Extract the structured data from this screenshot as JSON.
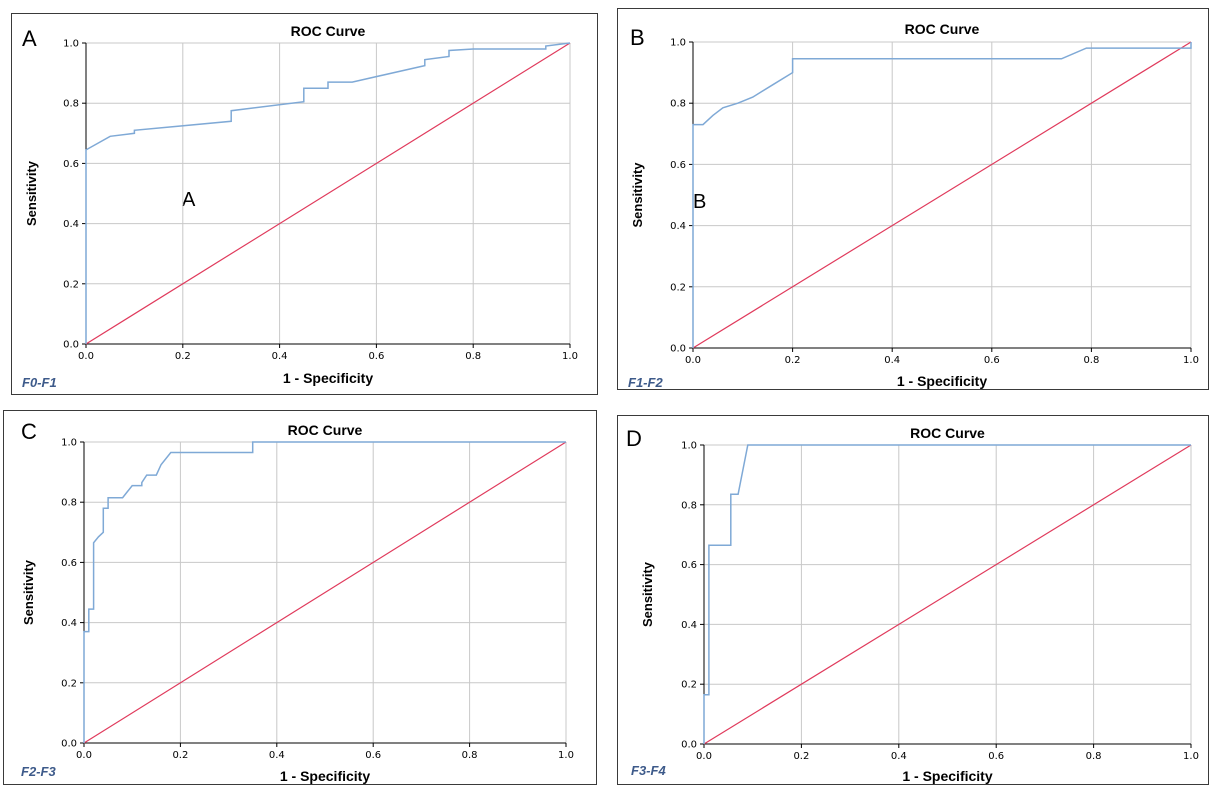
{
  "colors": {
    "roc": "#7fa9d6",
    "reference": "#e03a5c",
    "grid": "#c8c8c8",
    "axis": "#000000"
  },
  "chart_data": [
    {
      "type": "line",
      "panel_letter": "A",
      "inner_letter": "A",
      "tag": "F0-F1",
      "title": "ROC Curve",
      "xlabel": "1 - Specificity",
      "ylabel": "Sensitivity",
      "xlim": [
        0,
        1
      ],
      "ylim": [
        0,
        1
      ],
      "xticks": [
        "0.0",
        "0.2",
        "0.4",
        "0.6",
        "0.8",
        "1.0"
      ],
      "yticks": [
        "0.0",
        "0.2",
        "0.4",
        "0.6",
        "0.8",
        "1.0"
      ],
      "grid": true,
      "series": [
        {
          "x": [
            0,
            0,
            0.05,
            0.1,
            0.1,
            0.3,
            0.3,
            0.45,
            0.45,
            0.5,
            0.5,
            0.55,
            0.7,
            0.7,
            0.75,
            0.75,
            0.8,
            0.95,
            0.95,
            1.0
          ],
          "y": [
            0,
            0.645,
            0.69,
            0.7,
            0.71,
            0.74,
            0.775,
            0.805,
            0.85,
            0.85,
            0.87,
            0.87,
            0.925,
            0.945,
            0.955,
            0.975,
            0.98,
            0.98,
            0.99,
            1.0
          ]
        },
        {
          "x": [
            0,
            1
          ],
          "y": [
            0,
            1
          ]
        }
      ]
    },
    {
      "type": "line",
      "panel_letter": "B",
      "inner_letter": "B",
      "tag": "F1-F2",
      "title": "ROC Curve",
      "xlabel": "1 - Specificity",
      "ylabel": "Sensitivity",
      "xlim": [
        0,
        1
      ],
      "ylim": [
        0,
        1
      ],
      "xticks": [
        "0.0",
        "0.2",
        "0.4",
        "0.6",
        "0.8",
        "1.0"
      ],
      "yticks": [
        "0.0",
        "0.2",
        "0.4",
        "0.6",
        "0.8",
        "1.0"
      ],
      "grid": true,
      "series": [
        {
          "x": [
            0,
            0,
            0.02,
            0.04,
            0.06,
            0.09,
            0.12,
            0.16,
            0.2,
            0.2,
            0.74,
            0.79,
            1.0,
            1.0
          ],
          "y": [
            0,
            0.73,
            0.73,
            0.76,
            0.785,
            0.8,
            0.82,
            0.86,
            0.9,
            0.945,
            0.945,
            0.98,
            0.98,
            1.0
          ]
        },
        {
          "x": [
            0,
            1
          ],
          "y": [
            0,
            1
          ]
        }
      ]
    },
    {
      "type": "line",
      "panel_letter": "C",
      "inner_letter": "",
      "tag": "F2-F3",
      "title": "ROC Curve",
      "xlabel": "1 - Specificity",
      "ylabel": "Sensitivity",
      "xlim": [
        0,
        1
      ],
      "ylim": [
        0,
        1
      ],
      "xticks": [
        "0.0",
        "0.2",
        "0.4",
        "0.6",
        "0.8",
        "1.0"
      ],
      "yticks": [
        "0.0",
        "0.2",
        "0.4",
        "0.6",
        "0.8",
        "1.0"
      ],
      "grid": true,
      "series": [
        {
          "x": [
            0,
            0,
            0.01,
            0.01,
            0.02,
            0.02,
            0.03,
            0.04,
            0.04,
            0.05,
            0.05,
            0.08,
            0.1,
            0.12,
            0.12,
            0.13,
            0.15,
            0.16,
            0.18,
            0.18,
            0.35,
            0.35,
            1.0
          ],
          "y": [
            0,
            0.37,
            0.37,
            0.445,
            0.445,
            0.665,
            0.685,
            0.7,
            0.78,
            0.78,
            0.815,
            0.815,
            0.855,
            0.855,
            0.865,
            0.89,
            0.89,
            0.925,
            0.965,
            0.965,
            0.965,
            1.0,
            1.0
          ]
        },
        {
          "x": [
            0,
            1
          ],
          "y": [
            0,
            1
          ]
        }
      ]
    },
    {
      "type": "line",
      "panel_letter": "D",
      "inner_letter": "",
      "tag": "F3-F4",
      "title": "ROC Curve",
      "xlabel": "1 - Specificity",
      "ylabel": "Sensitivity",
      "xlim": [
        0,
        1
      ],
      "ylim": [
        0,
        1
      ],
      "xticks": [
        "0.0",
        "0.2",
        "0.4",
        "0.6",
        "0.8",
        "1.0"
      ],
      "yticks": [
        "0.0",
        "0.2",
        "0.4",
        "0.6",
        "0.8",
        "1.0"
      ],
      "grid": true,
      "series": [
        {
          "x": [
            0,
            0,
            0.01,
            0.01,
            0.055,
            0.055,
            0.07,
            0.09,
            0.09,
            1.0
          ],
          "y": [
            0,
            0.165,
            0.165,
            0.665,
            0.665,
            0.835,
            0.835,
            1.0,
            1.0,
            1.0
          ]
        },
        {
          "x": [
            0,
            1
          ],
          "y": [
            0,
            1
          ]
        }
      ]
    }
  ]
}
